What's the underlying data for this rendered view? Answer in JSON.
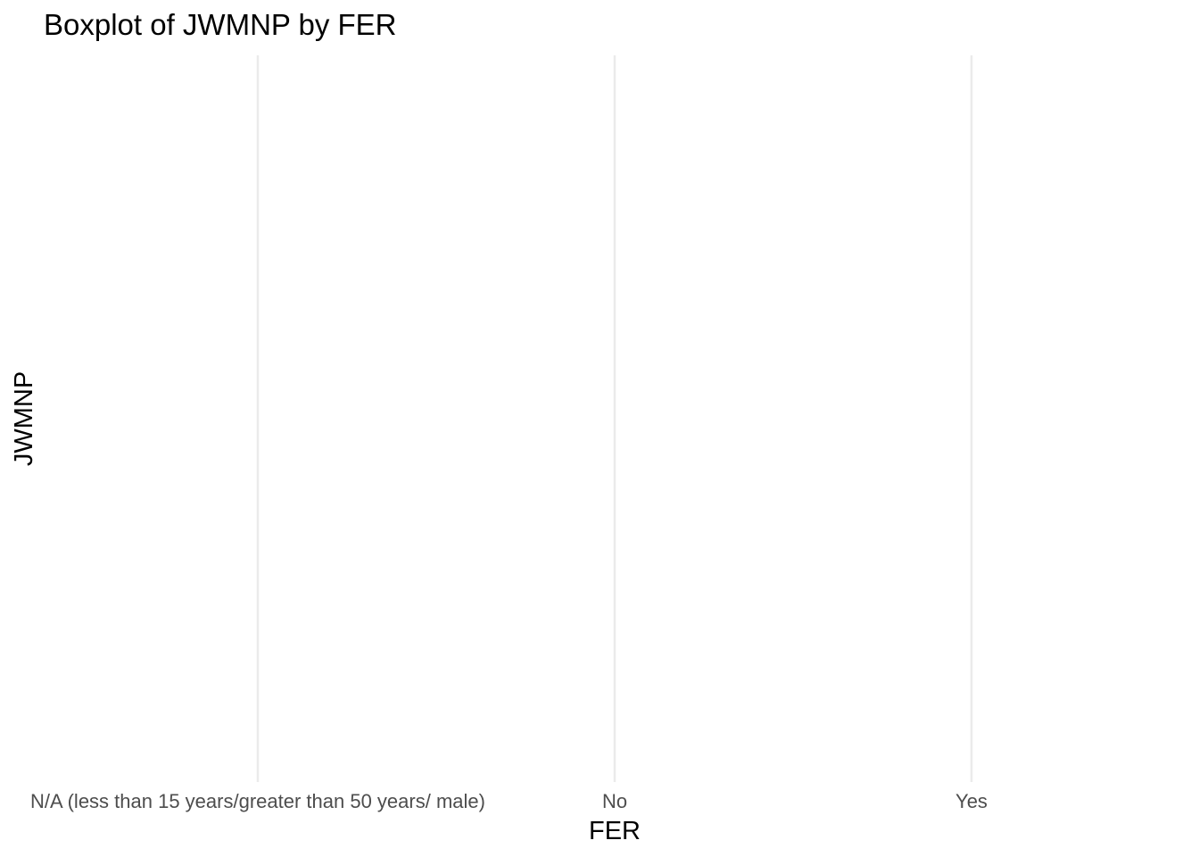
{
  "chart_data": {
    "type": "boxplot",
    "title": "Boxplot of JWMNP by FER",
    "xlabel": "FER",
    "ylabel": "JWMNP",
    "categories": [
      "N/A (less than 15 years/greater than 50 years/ male)",
      "No",
      "Yes"
    ],
    "series": [],
    "grid": {
      "major_x": true,
      "major_y": false
    },
    "legend": "none",
    "colors": {
      "grid": "#ebebeb",
      "tick_text": "#4d4d4d",
      "title_text": "#000000",
      "background": "#ffffff"
    }
  }
}
